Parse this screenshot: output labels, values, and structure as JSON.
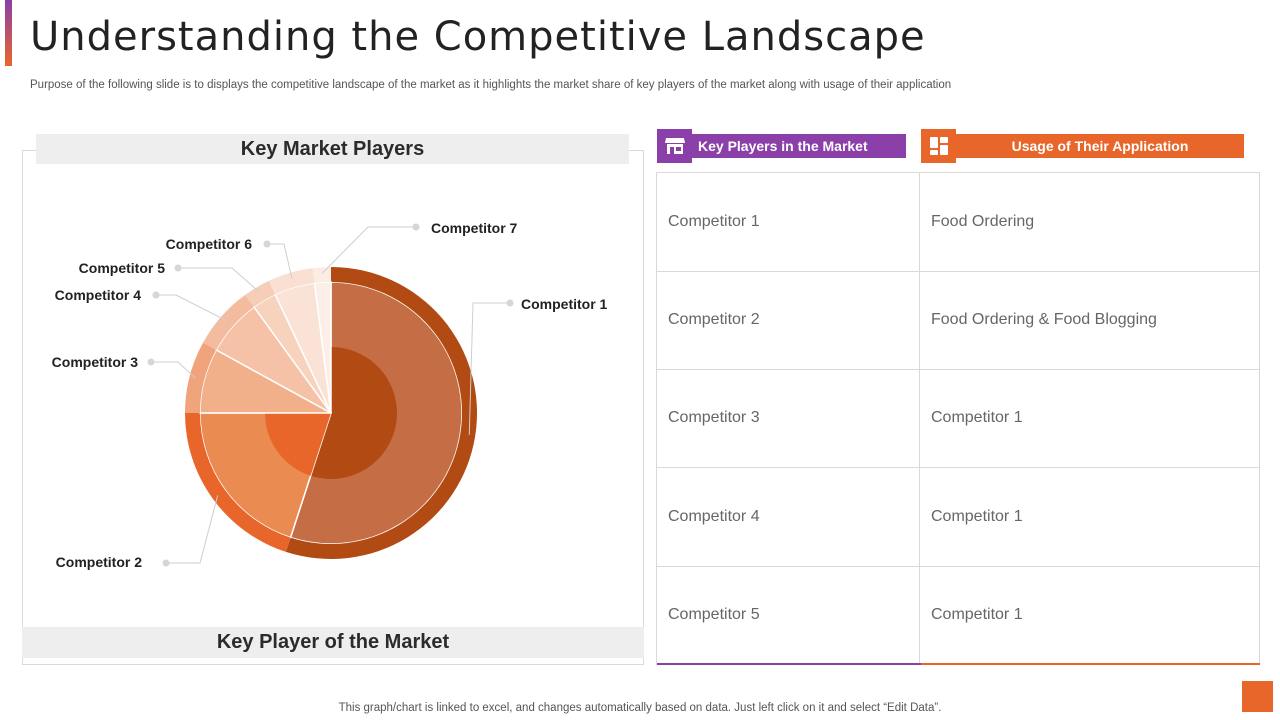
{
  "header": {
    "title": "Understanding the Competitive Landscape",
    "subtitle": "Purpose of the following slide is to displays the competitive landscape of the market as it highlights the market share of key players of the market  along with usage of their application"
  },
  "chart_panel": {
    "heading": "Key Market Players",
    "footer": "Key Player of the Market"
  },
  "chart_data": {
    "type": "pie",
    "title": "Key Market Players",
    "categories": [
      "Competitor 1",
      "Competitor 2",
      "Competitor 3",
      "Competitor 4",
      "Competitor 5",
      "Competitor 6",
      "Competitor 7"
    ],
    "values": [
      55,
      20,
      8,
      7,
      3,
      5,
      2
    ],
    "colors": [
      "#c56e45",
      "#ea8b52",
      "#f1b08a",
      "#f5c2a7",
      "#f7d2bd",
      "#fae3d6",
      "#fcefe7"
    ],
    "outer_ring_colors": [
      "#b24a14",
      "#e8662a",
      "#f0a47c",
      "#f3bc9f",
      "#f6cdb7",
      "#f9e0d3",
      "#fcede4"
    ],
    "inner_colors": [
      "#b24a14",
      "#e8662a"
    ]
  },
  "table": {
    "headers": [
      "Key Players in the Market",
      "Usage of Their Application"
    ],
    "header_icons": [
      "store-icon",
      "dashboard-icon"
    ],
    "rows": [
      [
        "Competitor 1",
        "Food Ordering"
      ],
      [
        "Competitor 2",
        "Food Ordering & Food Blogging"
      ],
      [
        "Competitor 3",
        "Competitor 1"
      ],
      [
        "Competitor 4",
        "Competitor 1"
      ],
      [
        "Competitor 5",
        "Competitor 1"
      ]
    ]
  },
  "footer_note": "This graph/chart is linked to excel,  and changes automatically based on data. Just left click on it and select “Edit Data”."
}
